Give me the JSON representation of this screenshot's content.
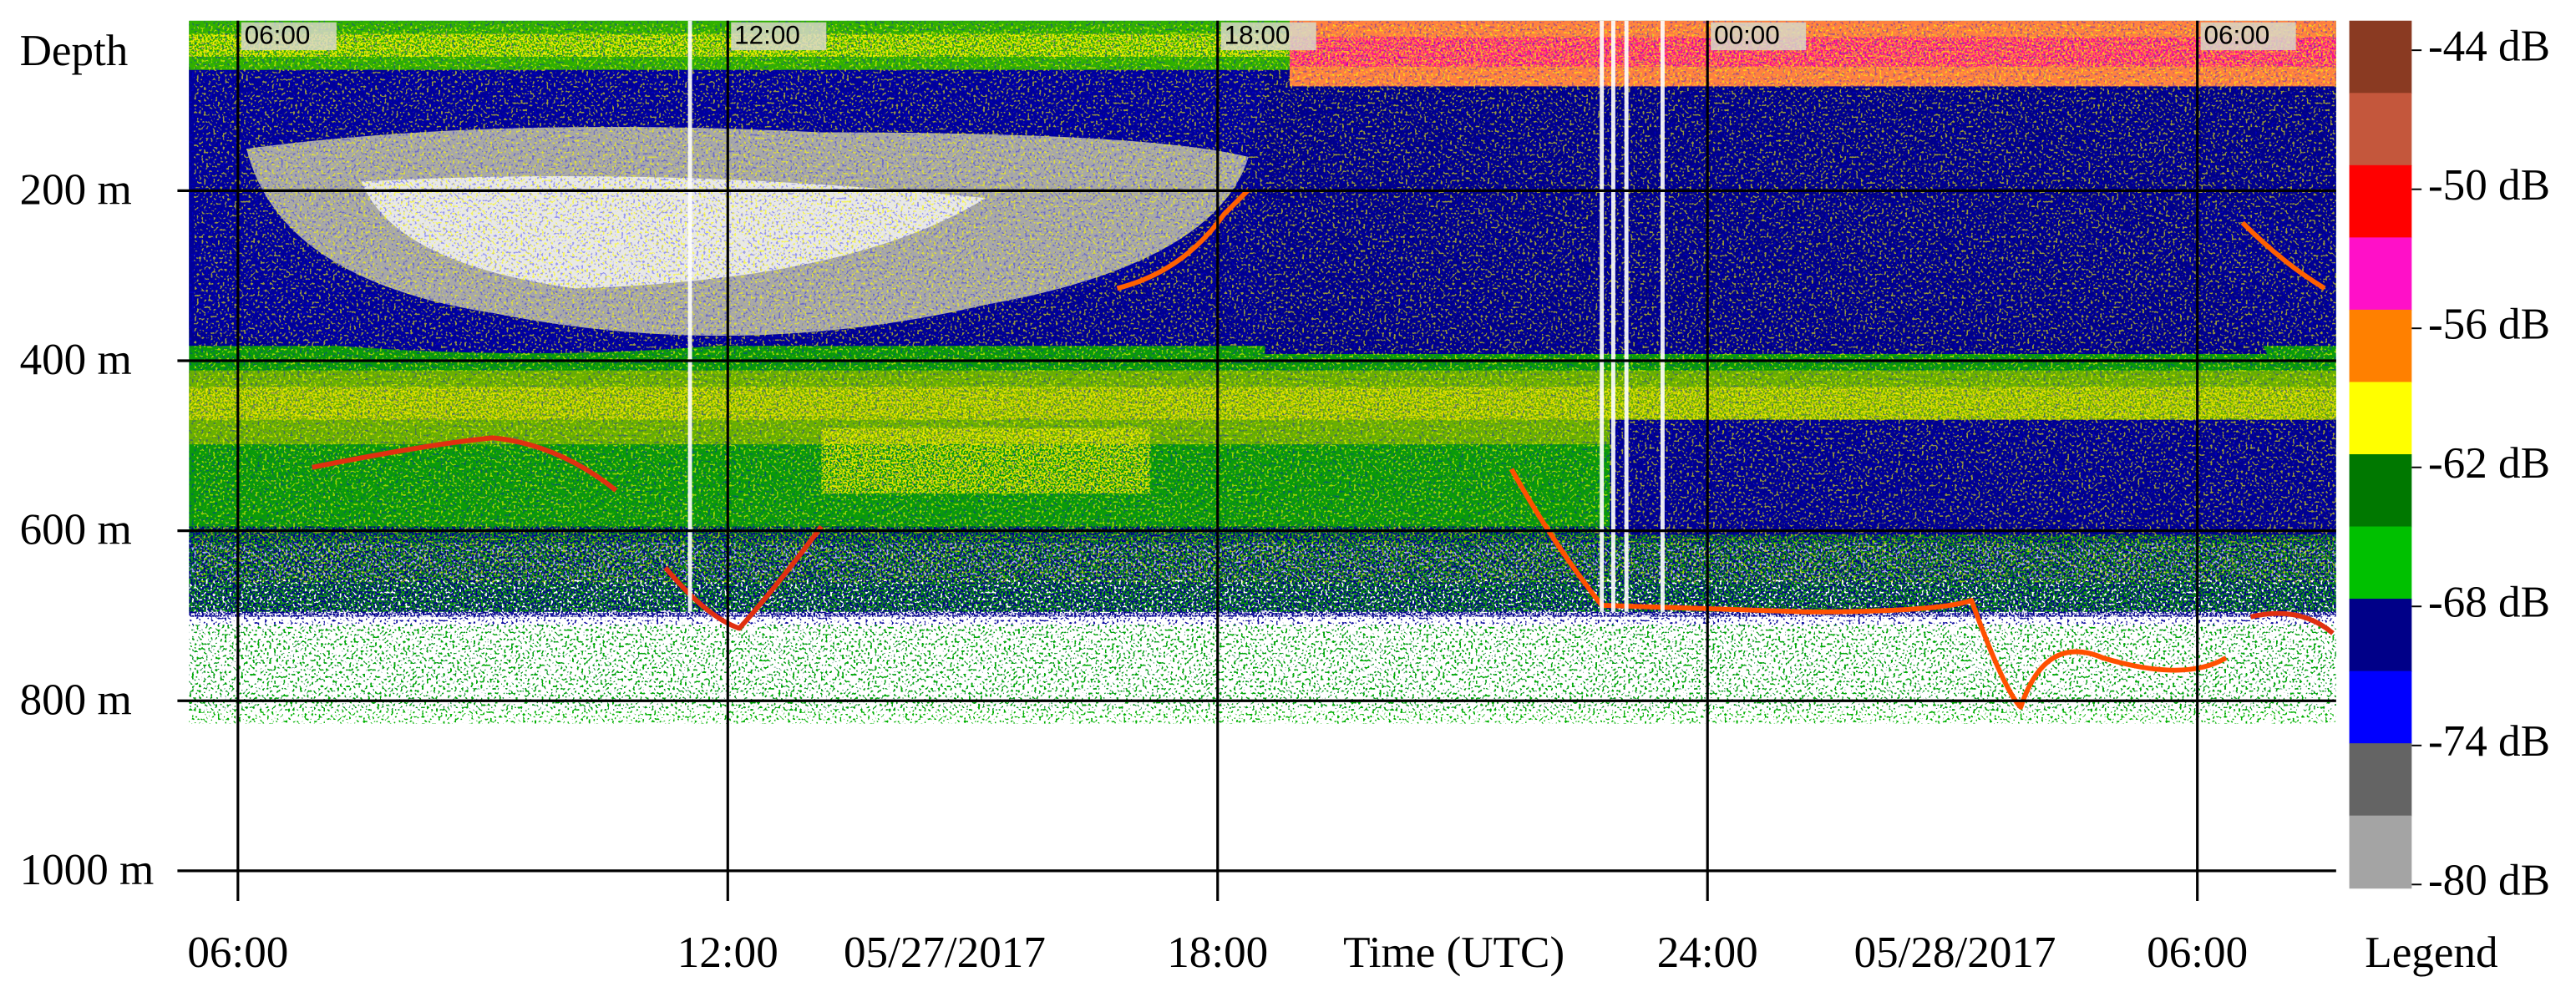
{
  "chart_data": {
    "type": "echogram",
    "ylabel": "Depth",
    "xlabel": "Time (UTC)",
    "legend_title": "Legend",
    "ylim": [
      0,
      1020
    ],
    "yticks": [
      {
        "value": 200,
        "label": "200 m"
      },
      {
        "value": 400,
        "label": "400 m"
      },
      {
        "value": 600,
        "label": "600 m"
      },
      {
        "value": 800,
        "label": "800 m"
      },
      {
        "value": 1000,
        "label": "1000 m"
      }
    ],
    "xlim": [
      5.4,
      31.7
    ],
    "xticks": [
      {
        "value": 6,
        "label": "06:00"
      },
      {
        "value": 12,
        "label": "12:00"
      },
      {
        "value": 18,
        "label": "18:00"
      },
      {
        "value": 24,
        "label": "24:00"
      },
      {
        "value": 30,
        "label": "06:00"
      }
    ],
    "xtick_top_labels": [
      "06:00",
      "12:00",
      "18:00",
      "00:00",
      "06:00"
    ],
    "date_labels": [
      "05/27/2017",
      "05/28/2017"
    ],
    "colorbar": {
      "lim": [
        -80,
        -44
      ],
      "ticks": [
        {
          "value": -44,
          "label": "-44 dB"
        },
        {
          "value": -50,
          "label": "-50 dB"
        },
        {
          "value": -56,
          "label": "-56 dB"
        },
        {
          "value": -62,
          "label": "-62 dB"
        },
        {
          "value": -68,
          "label": "-68 dB"
        },
        {
          "value": -74,
          "label": "-74 dB"
        },
        {
          "value": -80,
          "label": "-80 dB"
        }
      ],
      "colors": [
        "#8a3a22",
        "#c4573c",
        "#ff0000",
        "#ff10c8",
        "#ff8000",
        "#ffff00",
        "#007800",
        "#00c000",
        "#000088",
        "#0000ff",
        "#646464",
        "#a4a4a4"
      ]
    },
    "grid": true
  }
}
